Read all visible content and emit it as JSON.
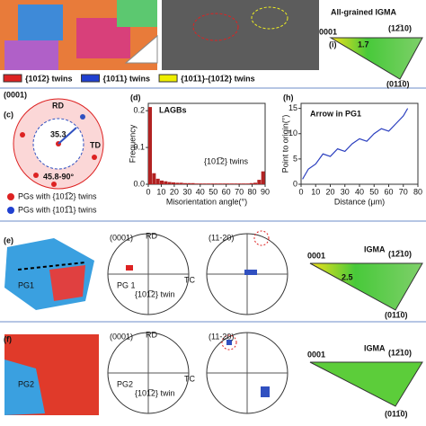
{
  "legend_top": [
    "{101̅2} twins",
    "{101̅1} twins",
    "{101̅1}-{101̅2} twins"
  ],
  "panel_i": {
    "title": "All-grained IGMA",
    "label": "(i)",
    "corner_left": "0001",
    "corner_right": "(12̅10)",
    "corner_bottom": "(011̅0)",
    "value": "1.7"
  },
  "panel_c": {
    "label": "(c)",
    "plane": "(0001)",
    "rd": "RD",
    "td": "TD",
    "angle": "35.3",
    "range": "45.8-90°",
    "legend": [
      "PGs with {101̅2} twins",
      "PGs with {101̅1} twins"
    ]
  },
  "panel_e": {
    "label": "(e)",
    "grain": "PG1",
    "pf1_title": "(0001)",
    "rd": "RD",
    "tc": "TC",
    "pg": "PG 1",
    "twin": "{101̅2} twin",
    "pf2_title": "(11-20)",
    "igma": "IGMA",
    "corner_left": "0001",
    "corner_right": "(12̅10)",
    "corner_bottom": "(011̅0)",
    "value": "2.5"
  },
  "panel_f": {
    "label": "(f)",
    "grain": "PG2",
    "pf1_title": "(0001)",
    "rd": "RD",
    "tc": "TC",
    "pg": "PG2",
    "twin": "{101̅2} twin",
    "pf2_title": "(11-20)",
    "igma": "IGMA",
    "corner_left": "0001",
    "corner_right": "(12̅10)",
    "corner_bottom": "(011̅0)"
  },
  "chart_data": [
    {
      "type": "histogram",
      "panel_label": "(d)",
      "xlabel": "Misorientation angle(°)",
      "ylabel": "Frequency",
      "color": "#b22222",
      "bins": [
        0,
        3,
        6,
        9,
        12,
        15,
        18,
        21,
        24,
        27,
        30,
        33,
        36,
        39,
        42,
        45,
        48,
        51,
        54,
        57,
        60,
        63,
        66,
        69,
        72,
        75,
        78,
        81,
        84,
        87,
        90
      ],
      "values": [
        0.21,
        0.03,
        0.015,
        0.01,
        0.008,
        0.006,
        0.005,
        0.004,
        0.004,
        0.003,
        0.003,
        0.003,
        0.002,
        0.002,
        0.002,
        0.002,
        0.002,
        0.002,
        0.002,
        0.002,
        0.002,
        0.002,
        0.002,
        0.002,
        0.002,
        0.002,
        0.003,
        0.004,
        0.012,
        0.035
      ],
      "xlim": [
        0,
        90
      ],
      "xticks": [
        0,
        10,
        20,
        30,
        40,
        50,
        60,
        70,
        80,
        90
      ],
      "ylim": [
        0,
        0.22
      ],
      "yticks": [
        {
          "value": 0,
          "label": "0.0"
        },
        0.1,
        0.2
      ],
      "annotations": [
        "LAGBs",
        "{101̅2} twins"
      ]
    },
    {
      "type": "line",
      "panel_label": "(h)",
      "title": "Arrow in PG1",
      "xlabel": "Distance (μm)",
      "ylabel": "Point to origin(°)",
      "color": "#2b3fbf",
      "x": [
        1,
        5,
        10,
        15,
        20,
        25,
        30,
        35,
        40,
        45,
        50,
        55,
        60,
        65,
        70,
        73
      ],
      "values": [
        1,
        3,
        4,
        6,
        5.5,
        7,
        6.5,
        8,
        9,
        8.5,
        10,
        11,
        10.5,
        12,
        13.5,
        15
      ],
      "xlim": [
        0,
        80
      ],
      "xticks": [
        0,
        10,
        20,
        30,
        40,
        50,
        60,
        70,
        80
      ],
      "ylim": [
        0,
        16
      ],
      "yticks": [
        0,
        5,
        10,
        15
      ]
    }
  ]
}
